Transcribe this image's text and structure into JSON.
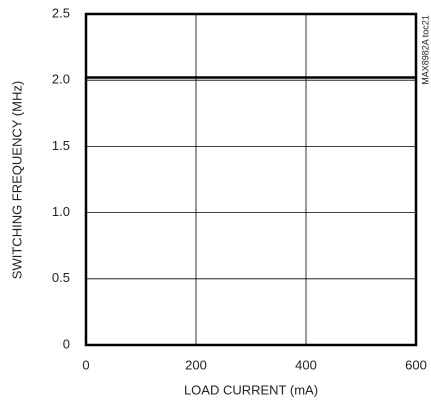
{
  "chart_data": {
    "type": "line",
    "xlabel": "LOAD CURRENT (mA)",
    "ylabel": "SWITCHING FREQUENCY (MHz)",
    "annotation": "MAX8982A toc21",
    "x": [
      0,
      100,
      200,
      300,
      400,
      500,
      600
    ],
    "series": [
      {
        "color": "#000000",
        "values": [
          2.02,
          2.02,
          2.02,
          2.02,
          2.02,
          2.02,
          2.02
        ]
      }
    ],
    "xlim": [
      0,
      600
    ],
    "xticks": [
      0,
      200,
      400,
      600
    ],
    "ylim": [
      0,
      2.5
    ],
    "yticks": [
      0,
      0.5,
      {
        "value": 1,
        "label": "1.0"
      },
      1.5,
      {
        "value": 2,
        "label": "2.0"
      },
      2.5
    ],
    "grid": true
  }
}
